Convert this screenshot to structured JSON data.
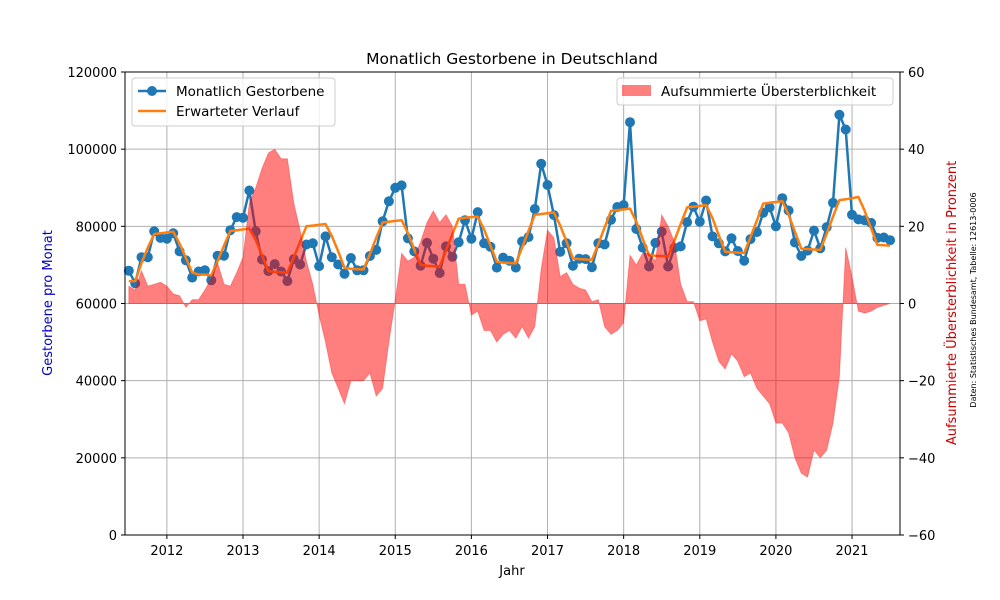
{
  "chart_data": {
    "type": "line",
    "title": "Monatlich Gestorbene in Deutschland",
    "xlabel": "Jahr",
    "ylabel": "Gestorbene pro Monat",
    "ylabel_right": "Aufsummierte Übersterblichkeit in Pronzent",
    "source_note": "Daten: Statistisches Bundesamt, Tabelle: 12613-0006",
    "xlim": [
      2011.45,
      2021.63
    ],
    "ylim": [
      0,
      120000
    ],
    "ylim_right": [
      -60,
      60
    ],
    "x_ticks": [
      2012,
      2013,
      2014,
      2015,
      2016,
      2017,
      2018,
      2019,
      2020,
      2021
    ],
    "y_ticks": [
      0,
      20000,
      40000,
      60000,
      80000,
      100000,
      120000
    ],
    "y_ticks_right": [
      -60,
      -40,
      -20,
      0,
      20,
      40,
      60
    ],
    "grid": true,
    "colors": {
      "deaths": "#1f77b4",
      "expected": "#ff7f0e",
      "excess_fill": "#ff0000",
      "left_label": "#0000cc",
      "right_label": "#cc0000"
    },
    "legend_left": {
      "placement": "top-left",
      "entries": [
        "Monatlich Gestorbene",
        "Erwarteter Verlauf"
      ]
    },
    "legend_right": {
      "placement": "top-right",
      "entries": [
        "Aufsummierte  Übersterblichkeit"
      ]
    },
    "start": {
      "year": 2011,
      "month": 7
    },
    "series": [
      {
        "name": "Monatlich Gestorbene",
        "axis": "left",
        "values": [
          68500,
          65200,
          72000,
          72000,
          78700,
          77000,
          76800,
          78200,
          73500,
          71200,
          66700,
          68300,
          68600,
          66000,
          72400,
          72400,
          79000,
          82400,
          82200,
          89300,
          78700,
          71400,
          68400,
          70200,
          68300,
          65800,
          71500,
          70100,
          75300,
          75600,
          69700,
          77400,
          72000,
          70100,
          67700,
          71800,
          68600,
          68600,
          72300,
          73900,
          81300,
          86500,
          90000,
          90600,
          76900,
          73500,
          69800,
          75700,
          71600,
          67900,
          74800,
          72100,
          75900,
          81600,
          76800,
          83700,
          75600,
          74700,
          69300,
          71900,
          71100,
          69300,
          76100,
          77200,
          84500,
          96200,
          90700,
          82900,
          73400,
          75600,
          69800,
          71600,
          71500,
          69400,
          75600,
          75300,
          81700,
          85000,
          85500,
          107000,
          79300,
          74500,
          69600,
          75700,
          78600,
          69600,
          74400,
          74800,
          81100,
          85100,
          81200,
          86700,
          77400,
          75600,
          73500,
          76900,
          73600,
          71100,
          76700,
          78500,
          83500,
          84900,
          80000,
          87300,
          84100,
          75800,
          72300,
          73700,
          78900,
          74300,
          79800,
          86100,
          108900,
          105100,
          83000,
          81800,
          81600,
          80900,
          77000,
          77100,
          76400
        ]
      },
      {
        "name": "Erwarteter Verlauf",
        "axis": "left",
        "values": [
          65800,
          65800,
          70500,
          74500,
          78000,
          78200,
          78400,
          78600,
          75500,
          71800,
          68000,
          67500,
          67500,
          67300,
          71000,
          75000,
          78800,
          79000,
          79200,
          79400,
          76500,
          72500,
          68400,
          68200,
          68100,
          68000,
          72000,
          76000,
          80000,
          80200,
          80400,
          80600,
          77500,
          73500,
          69200,
          69000,
          68900,
          68800,
          72800,
          77000,
          81000,
          81200,
          81400,
          81600,
          78300,
          74000,
          70000,
          69800,
          69700,
          69600,
          73700,
          78000,
          82000,
          82200,
          82400,
          82500,
          79200,
          75000,
          70800,
          70600,
          70500,
          70400,
          74500,
          78800,
          83000,
          83200,
          83400,
          83600,
          80200,
          76000,
          71700,
          71500,
          71400,
          71300,
          75400,
          79700,
          84000,
          84200,
          84400,
          84600,
          81200,
          76800,
          72500,
          72400,
          72300,
          72200,
          76300,
          80600,
          84900,
          85100,
          85300,
          85500,
          82100,
          77700,
          73400,
          73300,
          73200,
          73100,
          77200,
          81500,
          85900,
          86100,
          86300,
          86500,
          83000,
          78600,
          74200,
          74100,
          74000,
          73900,
          78100,
          82500,
          86800,
          87000,
          87300,
          87600,
          84000,
          79500,
          75200,
          75100,
          75000
        ]
      },
      {
        "name": "Aufsummierte  Übersterblichkeit",
        "axis": "right",
        "type": "area",
        "values": [
          4.5,
          3.5,
          8.5,
          4.5,
          5.0,
          5.5,
          4.5,
          2.5,
          2.0,
          -1.0,
          1.0,
          1.0,
          3.5,
          6.5,
          10.5,
          5.0,
          4.5,
          8.0,
          12.0,
          26.0,
          30.0,
          35.0,
          39.0,
          40.0,
          37.5,
          37.5,
          26.0,
          19.0,
          11.0,
          5.0,
          -3.0,
          -10.0,
          -18.0,
          -22.0,
          -26.0,
          -20.0,
          -20.0,
          -20.0,
          -18.0,
          -24.0,
          -22.0,
          -10.0,
          1.0,
          13.0,
          11.0,
          12.0,
          16.0,
          21.0,
          24.0,
          21.0,
          23.0,
          20.0,
          5.0,
          5.0,
          -3.0,
          -2.0,
          -7.0,
          -7.0,
          -10.0,
          -8.0,
          -7.0,
          -9.0,
          -6.0,
          -9.0,
          -6.0,
          9.0,
          19.0,
          17.0,
          7.0,
          8.0,
          5.0,
          4.0,
          3.5,
          0.5,
          1.0,
          -6.0,
          -8.0,
          -7.0,
          -5.0,
          12.5,
          10.0,
          13.0,
          13.0,
          11.0,
          23.0,
          20.0,
          16.0,
          5.0,
          0.5,
          0.5,
          -4.5,
          -4.0,
          -10.0,
          -15.0,
          -17.0,
          -13.0,
          -15.0,
          -19.0,
          -18.0,
          -22.0,
          -24.0,
          -26.0,
          -31.0,
          -31.0,
          -33.5,
          -40.0,
          -44.0,
          -45.0,
          -38.0,
          -40.0,
          -38.0,
          -31.0,
          -19.0,
          14.5,
          7.0,
          -2.0,
          -2.5,
          -2.0,
          -1.0,
          -0.5,
          0.0
        ]
      }
    ]
  }
}
